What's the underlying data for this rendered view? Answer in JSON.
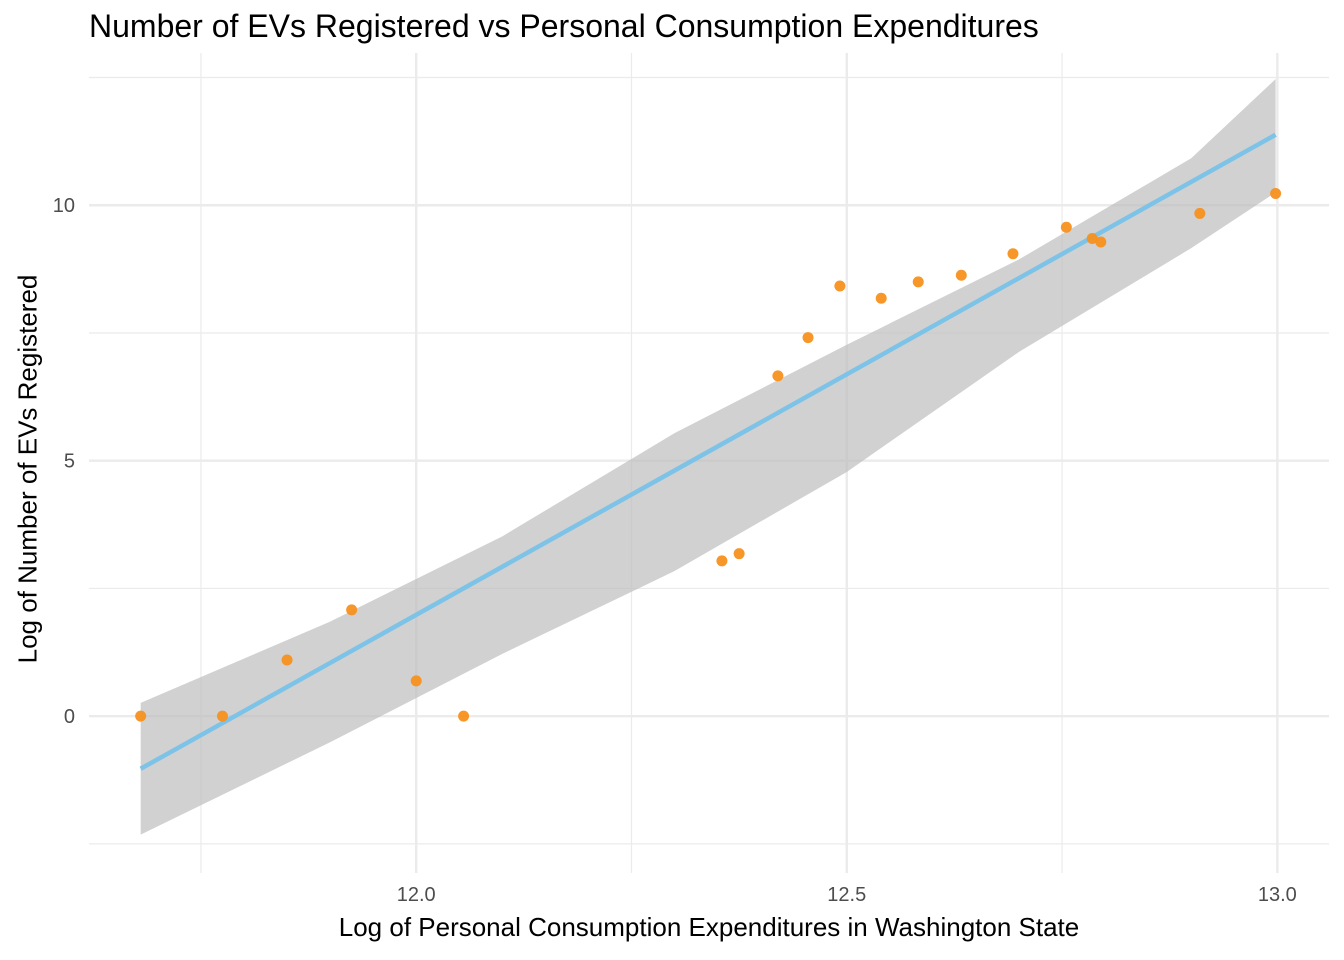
{
  "chart_data": {
    "type": "scatter",
    "title": "Number of EVs Registered vs Personal Consumption Expenditures",
    "xlabel": "Log of Personal Consumption Expenditures in Washington State",
    "ylabel": "Log of Number of EVs Registered",
    "xlim": [
      11.62,
      13.06
    ],
    "ylim": [
      -3.07,
      12.98
    ],
    "x_ticks": [
      12.0,
      12.5,
      13.0
    ],
    "x_tick_labels": [
      "12.0",
      "12.5",
      "13.0"
    ],
    "y_ticks": [
      0,
      5,
      10
    ],
    "y_tick_labels": [
      "0",
      "5",
      "10"
    ],
    "grid": true,
    "legend": "none",
    "colors": {
      "points": "#F7901E",
      "fit_line": "#7DC3E8",
      "confidence_band": "#BEBEBE",
      "grid": "#EBEBEB",
      "text": "#4D4D4D"
    },
    "points": [
      {
        "x": 11.68,
        "y": 0.0
      },
      {
        "x": 11.775,
        "y": 0.0
      },
      {
        "x": 11.85,
        "y": 1.1
      },
      {
        "x": 11.925,
        "y": 2.08
      },
      {
        "x": 12.0,
        "y": 0.69
      },
      {
        "x": 12.055,
        "y": 0.0
      },
      {
        "x": 12.355,
        "y": 3.04
      },
      {
        "x": 12.375,
        "y": 3.18
      },
      {
        "x": 12.42,
        "y": 6.66
      },
      {
        "x": 12.455,
        "y": 7.41
      },
      {
        "x": 12.492,
        "y": 8.42
      },
      {
        "x": 12.54,
        "y": 8.18
      },
      {
        "x": 12.583,
        "y": 8.5
      },
      {
        "x": 12.633,
        "y": 8.63
      },
      {
        "x": 12.693,
        "y": 9.05
      },
      {
        "x": 12.755,
        "y": 9.57
      },
      {
        "x": 12.785,
        "y": 9.35
      },
      {
        "x": 12.795,
        "y": 9.28
      },
      {
        "x": 12.91,
        "y": 9.84
      },
      {
        "x": 12.998,
        "y": 10.23
      }
    ],
    "fit": {
      "x": [
        11.68,
        12.998
      ],
      "y": [
        -1.03,
        11.38
      ]
    },
    "confidence_band": {
      "x": [
        11.68,
        11.9,
        12.1,
        12.3,
        12.5,
        12.7,
        12.9,
        12.998
      ],
      "lower": [
        -2.32,
        -0.51,
        1.22,
        2.84,
        4.78,
        7.13,
        9.16,
        10.25
      ],
      "upper": [
        0.26,
        1.85,
        3.52,
        5.54,
        7.27,
        8.94,
        10.92,
        12.47
      ]
    }
  }
}
